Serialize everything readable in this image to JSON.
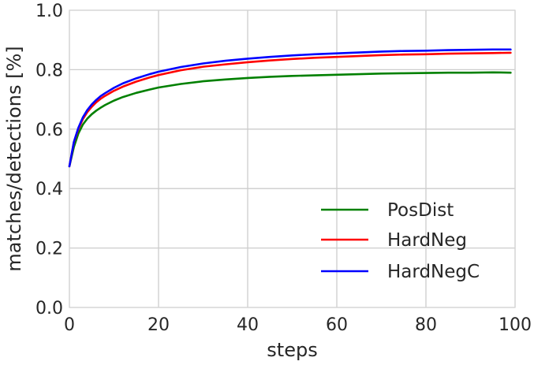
{
  "chart_data": {
    "type": "line",
    "xlabel": "steps",
    "ylabel": "matches/detections [%]",
    "xlim": [
      0,
      100
    ],
    "ylim": [
      0.0,
      1.0
    ],
    "xticks": [
      "0",
      "20",
      "40",
      "60",
      "80",
      "100"
    ],
    "yticks": [
      "0.0",
      "0.2",
      "0.4",
      "0.6",
      "0.8",
      "1.0"
    ],
    "grid": true,
    "legend_position": "lower-right",
    "x": [
      0,
      1,
      2,
      3,
      4,
      5,
      6,
      7,
      8,
      10,
      12,
      15,
      18,
      20,
      25,
      30,
      35,
      40,
      45,
      50,
      55,
      60,
      65,
      70,
      75,
      80,
      85,
      90,
      95,
      99
    ],
    "series": [
      {
        "name": "PosDist",
        "color": "#008000",
        "values": [
          0.475,
          0.54,
          0.585,
          0.615,
          0.635,
          0.65,
          0.662,
          0.672,
          0.681,
          0.696,
          0.708,
          0.722,
          0.733,
          0.74,
          0.752,
          0.761,
          0.767,
          0.772,
          0.776,
          0.779,
          0.781,
          0.783,
          0.785,
          0.787,
          0.788,
          0.789,
          0.79,
          0.79,
          0.791,
          0.79
        ]
      },
      {
        "name": "HardNeg",
        "color": "#ff0000",
        "values": [
          0.475,
          0.555,
          0.6,
          0.633,
          0.657,
          0.675,
          0.69,
          0.702,
          0.712,
          0.729,
          0.743,
          0.76,
          0.774,
          0.782,
          0.798,
          0.81,
          0.818,
          0.825,
          0.831,
          0.836,
          0.84,
          0.843,
          0.846,
          0.849,
          0.851,
          0.852,
          0.854,
          0.855,
          0.856,
          0.857
        ]
      },
      {
        "name": "HardNegC",
        "color": "#0000ff",
        "values": [
          0.475,
          0.557,
          0.604,
          0.639,
          0.664,
          0.683,
          0.698,
          0.711,
          0.721,
          0.739,
          0.754,
          0.771,
          0.785,
          0.793,
          0.809,
          0.821,
          0.83,
          0.837,
          0.843,
          0.848,
          0.852,
          0.855,
          0.858,
          0.861,
          0.863,
          0.864,
          0.866,
          0.867,
          0.868,
          0.868
        ]
      }
    ]
  }
}
